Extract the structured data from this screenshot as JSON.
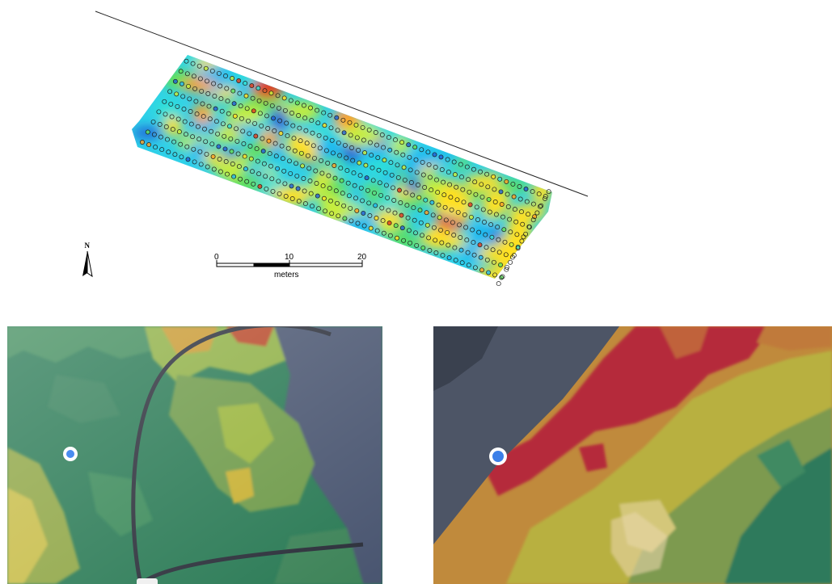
{
  "map": {
    "north_label": "N",
    "scale_ticks": [
      "0",
      "10",
      "20"
    ],
    "scale_unit": "meters",
    "surface_colors": [
      "#1f5fd6",
      "#1fb9f0",
      "#2fe0d8",
      "#5ee05a",
      "#c8ee3a",
      "#ffe020",
      "#ffa020",
      "#e23a1a"
    ]
  },
  "photos": [
    {
      "description_name": "tablet-zone-map-photo-green",
      "marker_color": "#4a8cf0"
    },
    {
      "description_name": "tablet-zone-map-photo-red-orange",
      "marker_color": "#3b7fe8"
    }
  ]
}
